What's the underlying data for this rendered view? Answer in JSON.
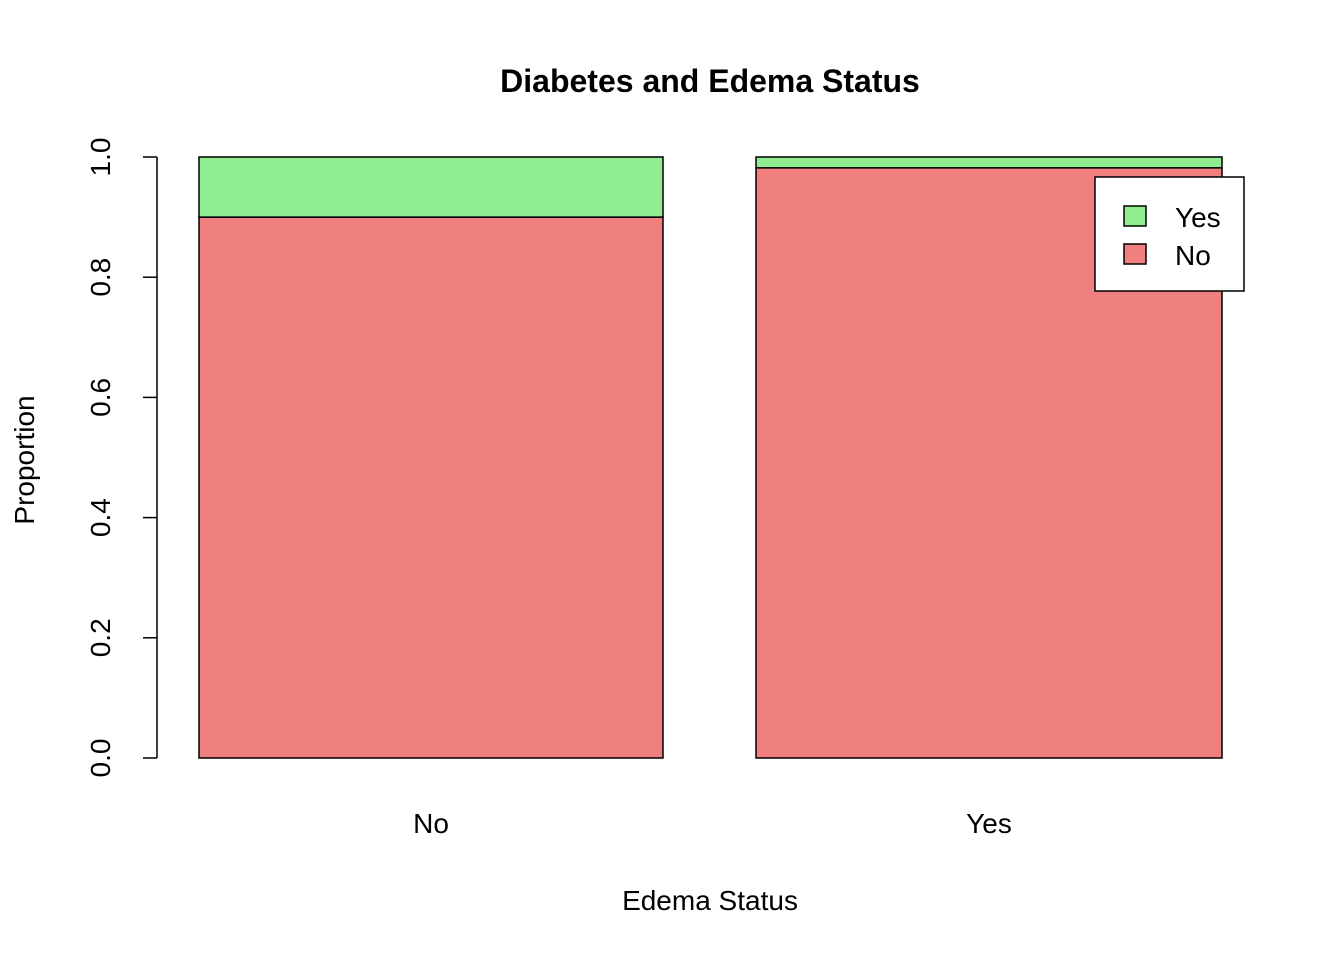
{
  "chart_data": {
    "type": "bar",
    "stacked": true,
    "title": "Diabetes and Edema Status",
    "xlabel": "Edema Status",
    "ylabel": "Proportion",
    "categories": [
      "No",
      "Yes"
    ],
    "series": [
      {
        "name": "No",
        "values": [
          0.9,
          0.982
        ],
        "color": "#F08080"
      },
      {
        "name": "Yes",
        "values": [
          0.1,
          0.018
        ],
        "color": "#90EE90"
      }
    ],
    "ylim": [
      0,
      1
    ],
    "yticks": [
      "0.0",
      "0.2",
      "0.4",
      "0.6",
      "0.8",
      "1.0"
    ],
    "legend": {
      "position": "top-right",
      "entries": [
        {
          "label": "Yes",
          "color": "#90EE90"
        },
        {
          "label": "No",
          "color": "#F08080"
        }
      ]
    },
    "grid": false
  }
}
